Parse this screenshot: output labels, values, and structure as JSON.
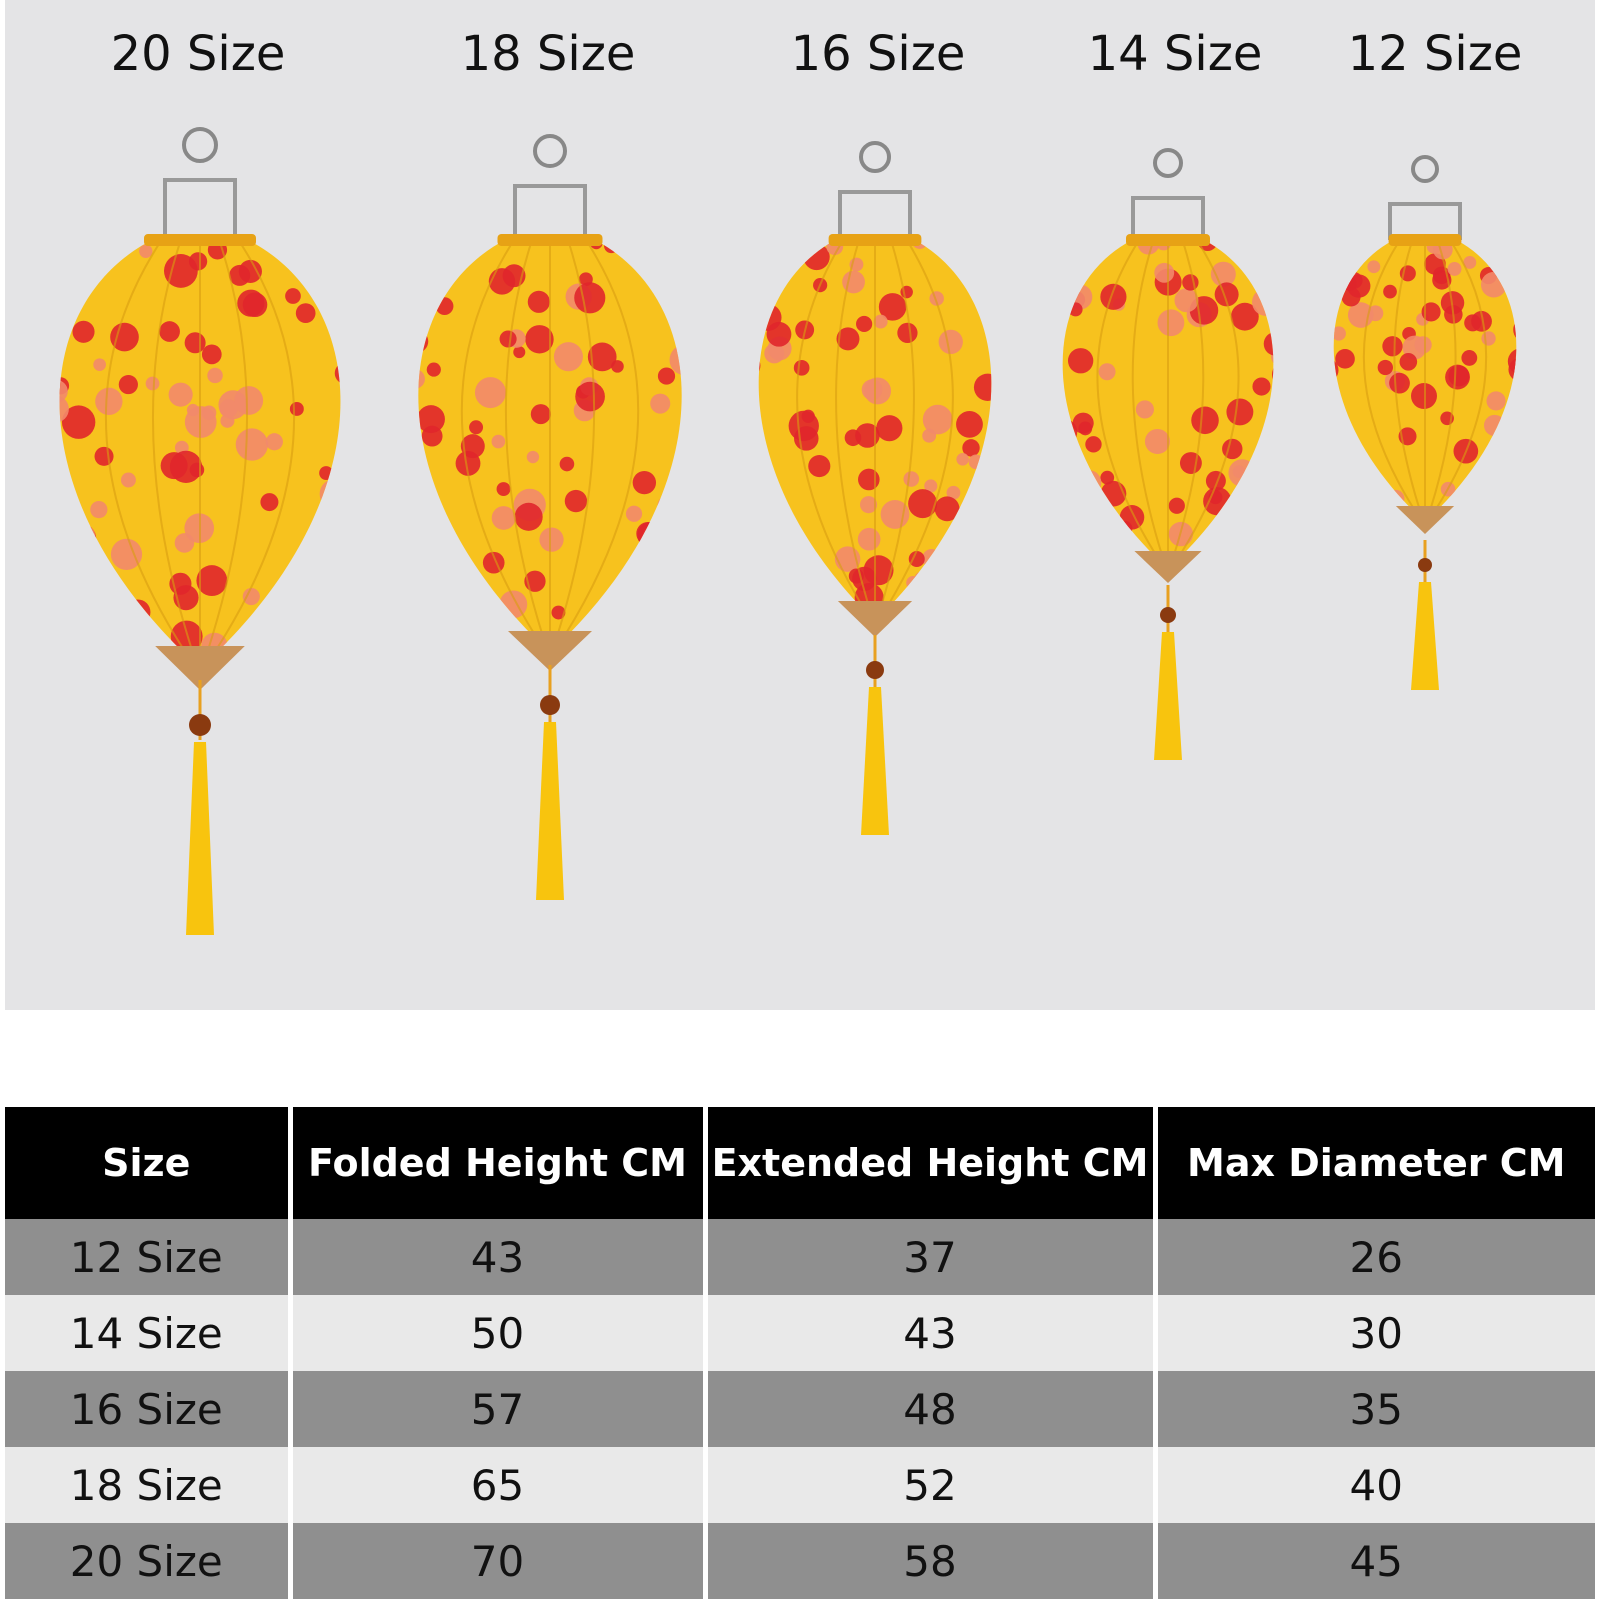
{
  "labels": [
    "20 Size",
    "18 Size",
    "16 Size",
    "14 Size",
    "12 Size"
  ],
  "table": {
    "header": [
      "Size",
      "Folded Height CM",
      "Extended Height CM",
      "Max Diameter CM"
    ],
    "rows": [
      [
        "12 Size",
        43,
        37,
        26
      ],
      [
        "14 Size",
        50,
        43,
        30
      ],
      [
        "16 Size",
        57,
        48,
        35
      ],
      [
        "18 Size",
        65,
        52,
        40
      ],
      [
        "20 Size",
        70,
        58,
        45
      ]
    ]
  }
}
